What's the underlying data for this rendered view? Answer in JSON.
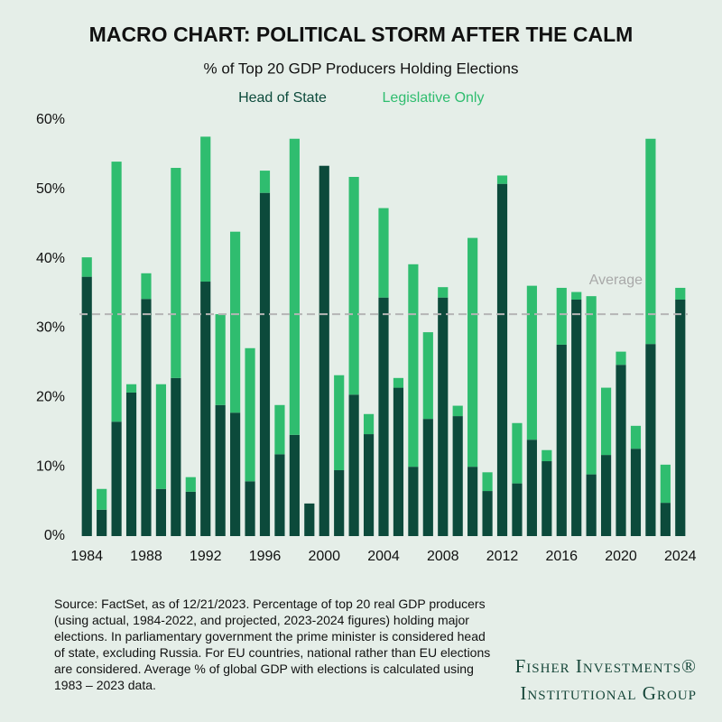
{
  "chart_data": {
    "type": "stacked-bar",
    "title": "MACRO CHART: POLITICAL STORM AFTER THE CALM",
    "subtitle": "% of Top 20 GDP Producers Holding Elections",
    "x": [
      1984,
      1985,
      1986,
      1987,
      1988,
      1989,
      1990,
      1991,
      1992,
      1993,
      1994,
      1995,
      1996,
      1997,
      1998,
      1999,
      2000,
      2001,
      2002,
      2003,
      2004,
      2005,
      2006,
      2007,
      2008,
      2009,
      2010,
      2011,
      2012,
      2013,
      2014,
      2015,
      2016,
      2017,
      2018,
      2019,
      2020,
      2021,
      2022,
      2023,
      2024
    ],
    "series": [
      {
        "name": "Head of State",
        "color": "#0c4a3b",
        "values": [
          37.4,
          3.8,
          16.5,
          20.7,
          34.2,
          6.8,
          22.8,
          6.4,
          36.7,
          18.9,
          17.8,
          7.9,
          49.5,
          11.8,
          14.6,
          4.7,
          53.4,
          9.5,
          20.4,
          14.7,
          34.4,
          21.4,
          10.0,
          16.9,
          34.4,
          17.3,
          10.0,
          6.5,
          50.8,
          7.6,
          13.9,
          10.8,
          27.6,
          34.1,
          8.9,
          11.7,
          24.7,
          12.6,
          27.7,
          4.8,
          34.1
        ]
      },
      {
        "name": "Legislative Only",
        "color": "#2fbd6f",
        "values": [
          2.8,
          3.0,
          37.5,
          1.2,
          3.7,
          15.1,
          30.3,
          2.1,
          20.9,
          13.1,
          26.1,
          19.2,
          3.2,
          7.1,
          42.7,
          0,
          0,
          13.7,
          31.4,
          2.9,
          12.9,
          1.4,
          29.2,
          12.5,
          1.5,
          1.5,
          33.0,
          2.7,
          1.2,
          8.7,
          22.2,
          1.6,
          8.2,
          1.1,
          25.7,
          9.7,
          1.9,
          3.3,
          29.6,
          5.5,
          1.7
        ]
      }
    ],
    "average": 32,
    "average_label": "Average",
    "xlim": [
      1983.5,
      2024.5
    ],
    "xticks": [
      1984,
      1988,
      1992,
      1996,
      2000,
      2004,
      2008,
      2012,
      2016,
      2020,
      2024
    ],
    "ylim": [
      0,
      60
    ],
    "yticks": [
      {
        "value": 0,
        "label": "0%"
      },
      {
        "value": 10,
        "label": "10%"
      },
      {
        "value": 20,
        "label": "20%"
      },
      {
        "value": 30,
        "label": "30%"
      },
      {
        "value": 40,
        "label": "40%"
      },
      {
        "value": 50,
        "label": "50%"
      },
      {
        "value": 60,
        "label": "60%"
      }
    ],
    "grid": false,
    "source": "Source: FactSet, as of 12/21/2023. Percentage of top 20 real GDP producers (using actual, 1984-2022, and projected, 2023-2024 figures) holding major elections. In parliamentary government the prime minister is considered head of state, excluding Russia. For EU countries, national rather than EU elections are considered. Average % of global GDP with elections is calculated using 1983 – 2023 data.",
    "logo": [
      "Fisher Investments®",
      "Institutional Group"
    ]
  }
}
